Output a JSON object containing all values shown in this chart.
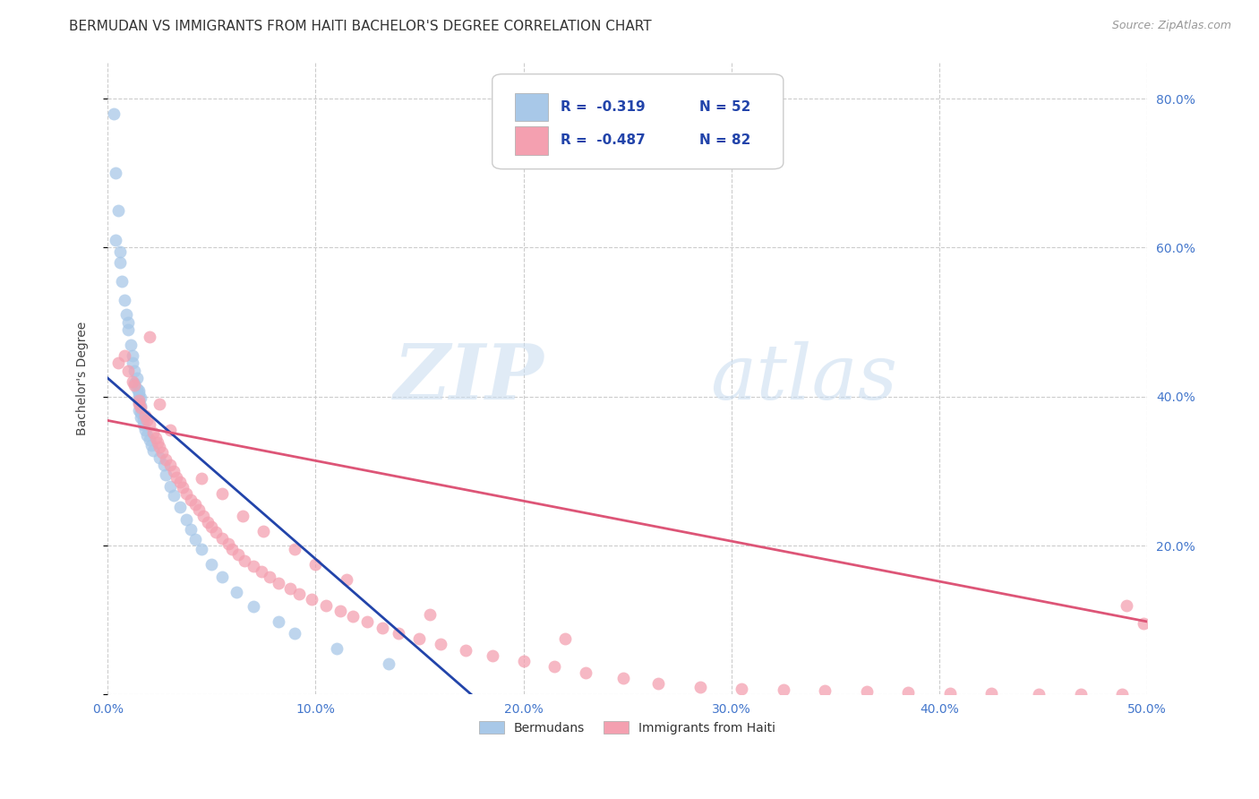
{
  "title": "BERMUDAN VS IMMIGRANTS FROM HAITI BACHELOR'S DEGREE CORRELATION CHART",
  "source": "Source: ZipAtlas.com",
  "ylabel": "Bachelor's Degree",
  "tick_color": "#4477CC",
  "watermark1": "ZIP",
  "watermark2": "atlas",
  "xlim": [
    0.0,
    0.5
  ],
  "ylim": [
    0.0,
    0.85
  ],
  "xticks": [
    0.0,
    0.1,
    0.2,
    0.3,
    0.4,
    0.5
  ],
  "yticks": [
    0.0,
    0.2,
    0.4,
    0.6,
    0.8
  ],
  "xtick_labels": [
    "0.0%",
    "10.0%",
    "20.0%",
    "30.0%",
    "40.0%",
    "50.0%"
  ],
  "ytick_labels": [
    "",
    "20.0%",
    "40.0%",
    "60.0%",
    "80.0%"
  ],
  "blue_color": "#A8C8E8",
  "pink_color": "#F4A0B0",
  "blue_line_color": "#2244AA",
  "pink_line_color": "#DD5577",
  "legend_R_blue": "R =  -0.319",
  "legend_N_blue": "N = 52",
  "legend_R_pink": "R =  -0.487",
  "legend_N_pink": "N = 82",
  "legend_label_blue": "Bermudans",
  "legend_label_pink": "Immigrants from Haiti",
  "blue_scatter_x": [
    0.003,
    0.004,
    0.005,
    0.004,
    0.006,
    0.006,
    0.007,
    0.008,
    0.009,
    0.01,
    0.01,
    0.011,
    0.012,
    0.012,
    0.013,
    0.014,
    0.013,
    0.014,
    0.015,
    0.015,
    0.015,
    0.016,
    0.015,
    0.016,
    0.015,
    0.016,
    0.016,
    0.017,
    0.017,
    0.018,
    0.019,
    0.02,
    0.021,
    0.022,
    0.025,
    0.027,
    0.028,
    0.03,
    0.032,
    0.035,
    0.038,
    0.04,
    0.042,
    0.045,
    0.05,
    0.055,
    0.062,
    0.07,
    0.082,
    0.09,
    0.11,
    0.135
  ],
  "blue_scatter_y": [
    0.78,
    0.7,
    0.65,
    0.61,
    0.595,
    0.58,
    0.555,
    0.53,
    0.51,
    0.5,
    0.49,
    0.47,
    0.455,
    0.445,
    0.435,
    0.425,
    0.418,
    0.41,
    0.408,
    0.405,
    0.4,
    0.398,
    0.392,
    0.388,
    0.382,
    0.378,
    0.372,
    0.368,
    0.362,
    0.355,
    0.348,
    0.342,
    0.335,
    0.328,
    0.318,
    0.308,
    0.295,
    0.28,
    0.268,
    0.252,
    0.235,
    0.222,
    0.208,
    0.195,
    0.175,
    0.158,
    0.138,
    0.118,
    0.098,
    0.082,
    0.062,
    0.042
  ],
  "pink_scatter_x": [
    0.005,
    0.008,
    0.01,
    0.012,
    0.013,
    0.015,
    0.015,
    0.016,
    0.018,
    0.019,
    0.02,
    0.022,
    0.023,
    0.024,
    0.025,
    0.026,
    0.028,
    0.03,
    0.032,
    0.033,
    0.035,
    0.036,
    0.038,
    0.04,
    0.042,
    0.044,
    0.046,
    0.048,
    0.05,
    0.052,
    0.055,
    0.058,
    0.06,
    0.063,
    0.066,
    0.07,
    0.074,
    0.078,
    0.082,
    0.088,
    0.092,
    0.098,
    0.105,
    0.112,
    0.118,
    0.125,
    0.132,
    0.14,
    0.15,
    0.16,
    0.172,
    0.185,
    0.2,
    0.215,
    0.23,
    0.248,
    0.265,
    0.285,
    0.305,
    0.325,
    0.345,
    0.365,
    0.385,
    0.405,
    0.425,
    0.448,
    0.468,
    0.488,
    0.02,
    0.025,
    0.03,
    0.045,
    0.055,
    0.065,
    0.075,
    0.09,
    0.1,
    0.115,
    0.155,
    0.22,
    0.49,
    0.498
  ],
  "pink_scatter_y": [
    0.445,
    0.455,
    0.435,
    0.42,
    0.415,
    0.395,
    0.39,
    0.385,
    0.375,
    0.368,
    0.362,
    0.352,
    0.345,
    0.338,
    0.332,
    0.325,
    0.315,
    0.308,
    0.3,
    0.292,
    0.285,
    0.278,
    0.27,
    0.262,
    0.255,
    0.248,
    0.24,
    0.232,
    0.225,
    0.218,
    0.21,
    0.202,
    0.195,
    0.188,
    0.18,
    0.172,
    0.165,
    0.158,
    0.15,
    0.142,
    0.135,
    0.128,
    0.12,
    0.112,
    0.105,
    0.098,
    0.09,
    0.082,
    0.075,
    0.068,
    0.06,
    0.052,
    0.045,
    0.038,
    0.03,
    0.022,
    0.015,
    0.01,
    0.008,
    0.006,
    0.005,
    0.004,
    0.003,
    0.002,
    0.002,
    0.001,
    0.001,
    0.001,
    0.48,
    0.39,
    0.355,
    0.29,
    0.27,
    0.24,
    0.22,
    0.195,
    0.175,
    0.155,
    0.108,
    0.075,
    0.12,
    0.095
  ],
  "blue_line_x": [
    0.0,
    0.175
  ],
  "blue_line_y": [
    0.425,
    0.0
  ],
  "pink_line_x": [
    0.0,
    0.5
  ],
  "pink_line_y": [
    0.368,
    0.098
  ],
  "grid_color": "#CCCCCC",
  "background_color": "#FFFFFF",
  "title_fontsize": 11,
  "axis_fontsize": 10,
  "tick_fontsize": 10,
  "legend_fontsize": 11
}
